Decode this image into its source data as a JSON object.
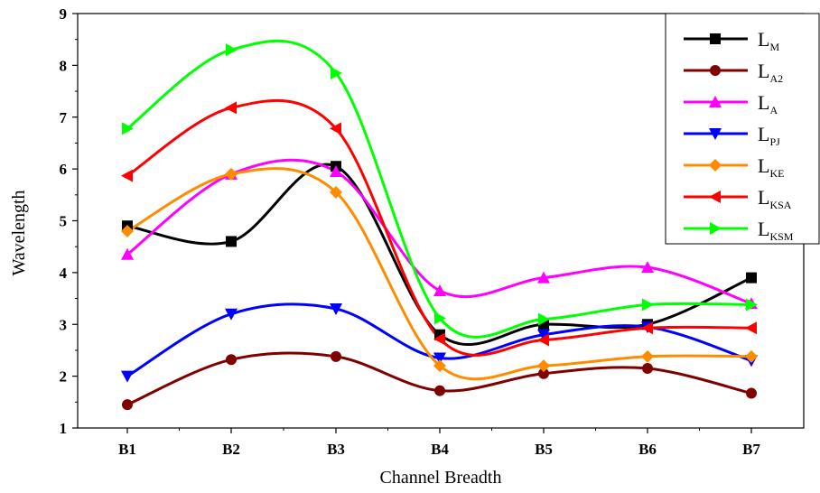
{
  "chart_data": {
    "type": "line",
    "xlabel": "Channel Breadth",
    "ylabel": "Wavelength",
    "ylim": [
      1,
      9
    ],
    "yticks": [
      1,
      2,
      3,
      4,
      5,
      6,
      7,
      8,
      9
    ],
    "categories": [
      "B1",
      "B2",
      "B3",
      "B4",
      "B5",
      "B6",
      "B7"
    ],
    "legend": "top-right",
    "series": [
      {
        "name": "L",
        "sub": "M",
        "color": "#000000",
        "marker": "square",
        "values": [
          4.9,
          4.6,
          6.05,
          2.8,
          3.0,
          3.0,
          3.9
        ]
      },
      {
        "name": "L",
        "sub": "A2",
        "color": "#800000",
        "marker": "circle",
        "values": [
          1.45,
          2.32,
          2.38,
          1.72,
          2.05,
          2.15,
          1.67
        ]
      },
      {
        "name": "L",
        "sub": "A",
        "color": "#ff00ff",
        "marker": "triangle-up",
        "values": [
          4.35,
          5.9,
          5.95,
          3.65,
          3.9,
          4.1,
          3.4
        ]
      },
      {
        "name": "L",
        "sub": "PJ",
        "color": "#0000ff",
        "marker": "triangle-down",
        "values": [
          2.0,
          3.2,
          3.3,
          2.35,
          2.8,
          2.95,
          2.3
        ]
      },
      {
        "name": "L",
        "sub": "KE",
        "color": "#ff8c00",
        "marker": "diamond",
        "values": [
          4.8,
          5.9,
          5.55,
          2.2,
          2.2,
          2.38,
          2.38
        ]
      },
      {
        "name": "L",
        "sub": "KSA",
        "color": "#ff0000",
        "marker": "triangle-left",
        "values": [
          5.87,
          7.18,
          6.78,
          2.72,
          2.7,
          2.93,
          2.93
        ]
      },
      {
        "name": "L",
        "sub": "KSM",
        "color": "#00ff00",
        "marker": "triangle-right",
        "values": [
          6.78,
          8.3,
          7.85,
          3.12,
          3.1,
          3.38,
          3.38
        ]
      }
    ]
  }
}
